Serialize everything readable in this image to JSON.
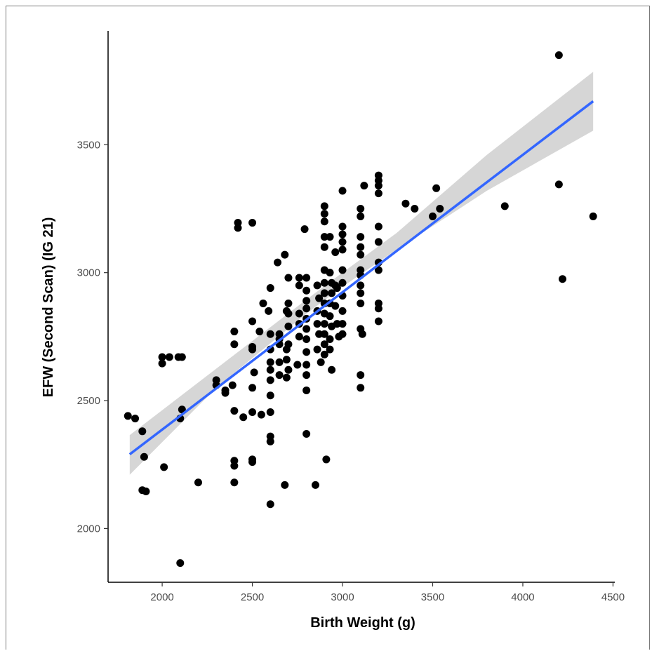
{
  "chart_data": {
    "type": "scatter",
    "xlabel": "Birth Weight (g)",
    "ylabel": "EFW (Second Scan) (IG 21)",
    "xlim": [
      1700,
      4510
    ],
    "ylim": [
      1790,
      3945
    ],
    "x_ticks": [
      2000,
      2500,
      3000,
      3500,
      4000,
      4500
    ],
    "y_ticks": [
      2000,
      2500,
      3000,
      3500
    ],
    "grid": false,
    "legend": "none",
    "colors": {
      "points": "#000000",
      "fit_line": "#3366ff",
      "ribbon": "#cccccc",
      "axis": "#000000"
    },
    "points": [
      [
        1810,
        2440
      ],
      [
        1850,
        2430
      ],
      [
        1890,
        2380
      ],
      [
        1900,
        2280
      ],
      [
        1890,
        2150
      ],
      [
        1910,
        2145
      ],
      [
        2010,
        2240
      ],
      [
        2000,
        2670
      ],
      [
        2000,
        2645
      ],
      [
        2040,
        2670
      ],
      [
        2090,
        2670
      ],
      [
        2110,
        2670
      ],
      [
        2100,
        2430
      ],
      [
        2110,
        2465
      ],
      [
        2100,
        1865
      ],
      [
        2200,
        2180
      ],
      [
        2300,
        2580
      ],
      [
        2300,
        2560
      ],
      [
        2350,
        2540
      ],
      [
        2350,
        2530
      ],
      [
        2390,
        2560
      ],
      [
        2400,
        2770
      ],
      [
        2400,
        2720
      ],
      [
        2400,
        2460
      ],
      [
        2400,
        2265
      ],
      [
        2400,
        2245
      ],
      [
        2400,
        2180
      ],
      [
        2420,
        3195
      ],
      [
        2420,
        3175
      ],
      [
        2450,
        2435
      ],
      [
        2500,
        3195
      ],
      [
        2500,
        2810
      ],
      [
        2500,
        2700
      ],
      [
        2500,
        2710
      ],
      [
        2510,
        2610
      ],
      [
        2500,
        2550
      ],
      [
        2500,
        2455
      ],
      [
        2500,
        2270
      ],
      [
        2500,
        2260
      ],
      [
        2540,
        2770
      ],
      [
        2550,
        2445
      ],
      [
        2560,
        2880
      ],
      [
        2590,
        2850
      ],
      [
        2600,
        2940
      ],
      [
        2600,
        2760
      ],
      [
        2600,
        2700
      ],
      [
        2600,
        2650
      ],
      [
        2600,
        2620
      ],
      [
        2600,
        2580
      ],
      [
        2600,
        2520
      ],
      [
        2600,
        2455
      ],
      [
        2600,
        2360
      ],
      [
        2600,
        2340
      ],
      [
        2600,
        2095
      ],
      [
        2640,
        3040
      ],
      [
        2650,
        2760
      ],
      [
        2650,
        2740
      ],
      [
        2650,
        2720
      ],
      [
        2650,
        2650
      ],
      [
        2650,
        2600
      ],
      [
        2680,
        3070
      ],
      [
        2690,
        2850
      ],
      [
        2690,
        2700
      ],
      [
        2690,
        2660
      ],
      [
        2690,
        2590
      ],
      [
        2680,
        2170
      ],
      [
        2700,
        2980
      ],
      [
        2700,
        2880
      ],
      [
        2700,
        2840
      ],
      [
        2700,
        2790
      ],
      [
        2700,
        2720
      ],
      [
        2700,
        2620
      ],
      [
        2760,
        2980
      ],
      [
        2760,
        2950
      ],
      [
        2760,
        2840
      ],
      [
        2760,
        2800
      ],
      [
        2760,
        2750
      ],
      [
        2750,
        2640
      ],
      [
        2790,
        3170
      ],
      [
        2800,
        2980
      ],
      [
        2800,
        2930
      ],
      [
        2800,
        2890
      ],
      [
        2800,
        2860
      ],
      [
        2800,
        2820
      ],
      [
        2800,
        2780
      ],
      [
        2800,
        2740
      ],
      [
        2800,
        2690
      ],
      [
        2800,
        2640
      ],
      [
        2800,
        2600
      ],
      [
        2800,
        2540
      ],
      [
        2800,
        2370
      ],
      [
        2850,
        2170
      ],
      [
        2860,
        2950
      ],
      [
        2870,
        2900
      ],
      [
        2860,
        2850
      ],
      [
        2860,
        2800
      ],
      [
        2870,
        2760
      ],
      [
        2860,
        2700
      ],
      [
        2880,
        2650
      ],
      [
        2900,
        3260
      ],
      [
        2900,
        3230
      ],
      [
        2900,
        3200
      ],
      [
        2900,
        3140
      ],
      [
        2900,
        3100
      ],
      [
        2900,
        3010
      ],
      [
        2900,
        2960
      ],
      [
        2900,
        2920
      ],
      [
        2900,
        2880
      ],
      [
        2900,
        2840
      ],
      [
        2900,
        2800
      ],
      [
        2900,
        2760
      ],
      [
        2900,
        2720
      ],
      [
        2900,
        2680
      ],
      [
        2910,
        2270
      ],
      [
        2930,
        3140
      ],
      [
        2930,
        3000
      ],
      [
        2940,
        2960
      ],
      [
        2940,
        2920
      ],
      [
        2930,
        2880
      ],
      [
        2930,
        2830
      ],
      [
        2940,
        2790
      ],
      [
        2930,
        2740
      ],
      [
        2930,
        2700
      ],
      [
        2940,
        2620
      ],
      [
        2960,
        3080
      ],
      [
        2960,
        2950
      ],
      [
        2960,
        2870
      ],
      [
        2970,
        2800
      ],
      [
        2980,
        2750
      ],
      [
        2970,
        2940
      ],
      [
        3000,
        3320
      ],
      [
        3000,
        3180
      ],
      [
        3000,
        3150
      ],
      [
        3000,
        3120
      ],
      [
        3000,
        3090
      ],
      [
        3000,
        3010
      ],
      [
        3000,
        2960
      ],
      [
        3000,
        2910
      ],
      [
        3000,
        2850
      ],
      [
        3000,
        2800
      ],
      [
        3000,
        2760
      ],
      [
        3100,
        3250
      ],
      [
        3100,
        3220
      ],
      [
        3100,
        3140
      ],
      [
        3100,
        3100
      ],
      [
        3100,
        3070
      ],
      [
        3100,
        3010
      ],
      [
        3100,
        2990
      ],
      [
        3100,
        2950
      ],
      [
        3100,
        2920
      ],
      [
        3100,
        2880
      ],
      [
        3100,
        2780
      ],
      [
        3110,
        2760
      ],
      [
        3100,
        2600
      ],
      [
        3100,
        2550
      ],
      [
        3120,
        3340
      ],
      [
        3200,
        3380
      ],
      [
        3200,
        3360
      ],
      [
        3200,
        3340
      ],
      [
        3200,
        3310
      ],
      [
        3200,
        3180
      ],
      [
        3200,
        3120
      ],
      [
        3200,
        3040
      ],
      [
        3200,
        3010
      ],
      [
        3200,
        2880
      ],
      [
        3200,
        2860
      ],
      [
        3200,
        2810
      ],
      [
        3350,
        3270
      ],
      [
        3400,
        3250
      ],
      [
        3500,
        3220
      ],
      [
        3520,
        3330
      ],
      [
        3540,
        3250
      ],
      [
        3900,
        3260
      ],
      [
        4200,
        3850
      ],
      [
        4200,
        3345
      ],
      [
        4220,
        2975
      ],
      [
        4390,
        3220
      ]
    ],
    "fit_line": {
      "x": [
        1820,
        4390
      ],
      "y": [
        2290,
        3670
      ]
    },
    "confidence_band": {
      "x": [
        1820,
        2300,
        2800,
        3000,
        3300,
        3800,
        4390
      ],
      "lower": [
        2210,
        2550,
        2840,
        2945,
        3090,
        3320,
        3555
      ],
      "upper": [
        2365,
        2625,
        2895,
        3000,
        3155,
        3460,
        3785
      ]
    }
  }
}
